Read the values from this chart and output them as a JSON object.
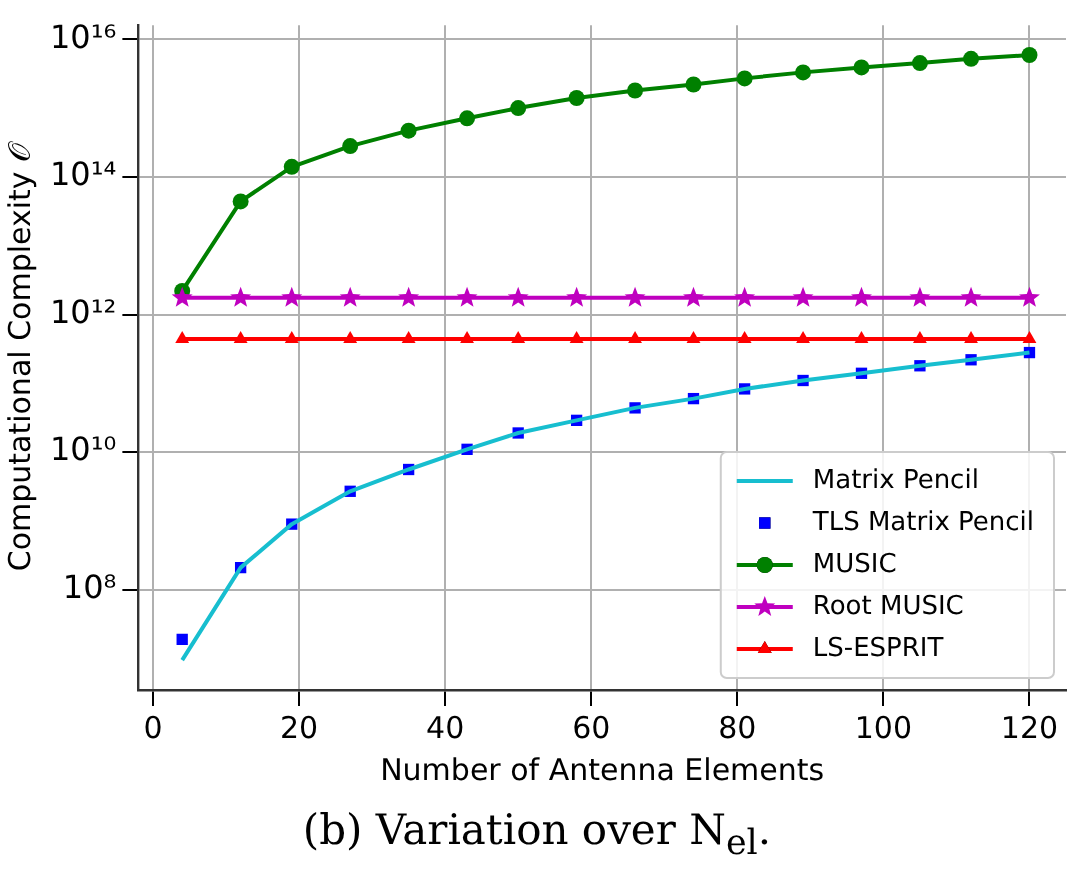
{
  "chart_data": {
    "type": "line",
    "xlabel": "Number of Antenna Elements",
    "ylabel": "Computational Complexity 𝒪",
    "x": [
      4,
      12,
      19,
      27,
      35,
      43,
      50,
      58,
      66,
      74,
      81,
      89,
      97,
      105,
      112,
      120
    ],
    "series": [
      {
        "name": "Matrix Pencil",
        "type": "line",
        "color": "#17becf",
        "marker": "none",
        "values": [
          9500000.0,
          210000000.0,
          900000000.0,
          2700000000.0,
          5600000000.0,
          11000000000.0,
          19000000000.0,
          29000000000.0,
          44000000000.0,
          60000000000.0,
          83000000000.0,
          110000000000.0,
          140000000000.0,
          180000000000.0,
          220000000000.0,
          280000000000.0
        ]
      },
      {
        "name": "TLS Matrix Pencil",
        "type": "scatter",
        "color": "#0000ff",
        "marker": "square",
        "values": [
          19000000.0,
          210000000.0,
          900000000.0,
          2700000000.0,
          5600000000.0,
          11000000000.0,
          19000000000.0,
          29000000000.0,
          44000000000.0,
          60000000000.0,
          83000000000.0,
          110000000000.0,
          140000000000.0,
          180000000000.0,
          220000000000.0,
          280000000000.0
        ]
      },
      {
        "name": "MUSIC",
        "type": "line",
        "color": "#008000",
        "marker": "circle",
        "values": [
          2200000000000.0,
          44000000000000.0,
          140000000000000.0,
          280000000000000.0,
          470000000000000.0,
          710000000000000.0,
          1000000000000000.0,
          1400000000000000.0,
          1800000000000000.0,
          2200000000000000.0,
          2700000000000000.0,
          3300000000000000.0,
          3900000000000000.0,
          4500000000000000.0,
          5200000000000000.0,
          5900000000000000.0
        ]
      },
      {
        "name": "Root MUSIC",
        "type": "line",
        "color": "#bf00bf",
        "marker": "star",
        "values": [
          1750000000000.0,
          1750000000000.0,
          1750000000000.0,
          1750000000000.0,
          1750000000000.0,
          1750000000000.0,
          1750000000000.0,
          1750000000000.0,
          1750000000000.0,
          1750000000000.0,
          1750000000000.0,
          1750000000000.0,
          1750000000000.0,
          1750000000000.0,
          1750000000000.0,
          1750000000000.0
        ]
      },
      {
        "name": "LS-ESPRIT",
        "type": "line",
        "color": "#ff0000",
        "marker": "triangle",
        "values": [
          440000000000.0,
          440000000000.0,
          440000000000.0,
          440000000000.0,
          440000000000.0,
          440000000000.0,
          440000000000.0,
          440000000000.0,
          440000000000.0,
          440000000000.0,
          440000000000.0,
          440000000000.0,
          440000000000.0,
          440000000000.0,
          440000000000.0,
          440000000000.0
        ]
      }
    ],
    "xlim": [
      -2,
      125
    ],
    "xticks": [
      0,
      20,
      40,
      60,
      80,
      100,
      120
    ],
    "ylim": [
      3500000.0,
      1.6e+16
    ],
    "yticks": [
      {
        "value": 100000000.0,
        "label": "10⁸"
      },
      {
        "value": 10000000000.0,
        "label": "10¹⁰"
      },
      {
        "value": 1000000000000.0,
        "label": "10¹²"
      },
      {
        "value": 100000000000000.0,
        "label": "10¹⁴"
      },
      {
        "value": 1e+16,
        "label": "10¹⁶"
      }
    ],
    "log": "y",
    "grid": true,
    "legend": "bottom right",
    "annotations": [
      "(b) Variation over N$_{el}$."
    ]
  }
}
